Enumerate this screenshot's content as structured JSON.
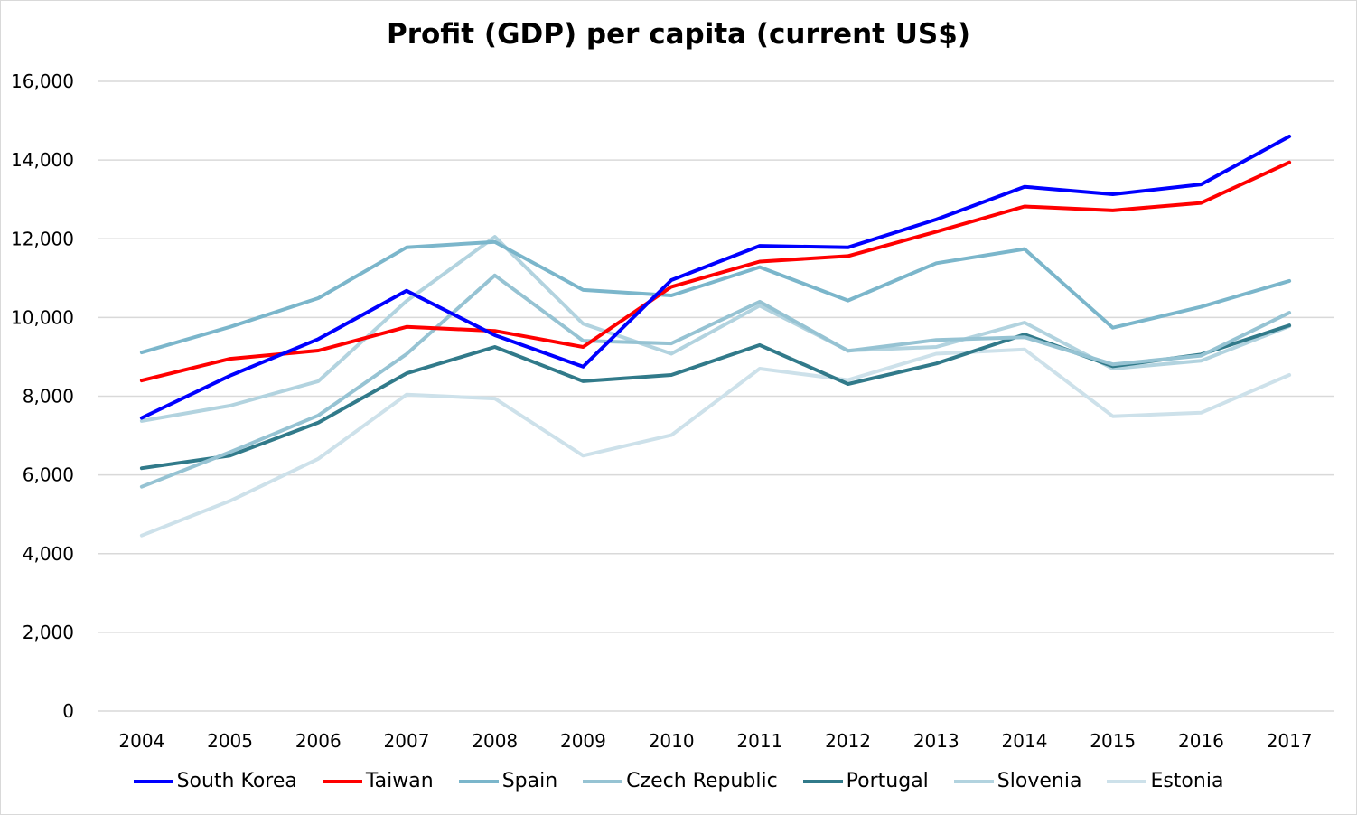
{
  "chart_data": {
    "type": "line",
    "title": "Profit (GDP) per capita (current US$)",
    "xlabel": "",
    "ylabel": "",
    "ylim": [
      0,
      16000
    ],
    "yticks": [
      0,
      2000,
      4000,
      6000,
      8000,
      10000,
      12000,
      14000,
      16000
    ],
    "ytick_labels": [
      "0",
      "2,000",
      "4,000",
      "6,000",
      "8,000",
      "10,000",
      "12,000",
      "14,000",
      "16,000"
    ],
    "grid": true,
    "legend_position": "bottom",
    "categories": [
      "2004",
      "2005",
      "2006",
      "2007",
      "2008",
      "2009",
      "2010",
      "2011",
      "2012",
      "2013",
      "2014",
      "2015",
      "2016",
      "2017"
    ],
    "series": [
      {
        "name": "South Korea",
        "color": "#0000ff",
        "values": [
          7450,
          8520,
          9450,
          10680,
          9550,
          8750,
          10950,
          11820,
          11780,
          12490,
          13320,
          13130,
          13380,
          14600
        ]
      },
      {
        "name": "Taiwan",
        "color": "#ff0000",
        "values": [
          8400,
          8950,
          9160,
          9760,
          9660,
          9250,
          10780,
          11420,
          11560,
          12180,
          12820,
          12720,
          12910,
          13940
        ]
      },
      {
        "name": "Spain",
        "color": "#7bb6cb",
        "values": [
          9110,
          9760,
          10490,
          11780,
          11920,
          10700,
          10560,
          11280,
          10430,
          11380,
          11740,
          9740,
          10270,
          10930
        ]
      },
      {
        "name": "Czech Republic",
        "color": "#96c3d3",
        "values": [
          5700,
          6580,
          7510,
          9070,
          11070,
          9410,
          9340,
          10400,
          9150,
          9430,
          9500,
          8810,
          9030,
          10120
        ]
      },
      {
        "name": "Portugal",
        "color": "#317a8a",
        "values": [
          6170,
          6490,
          7330,
          8580,
          9250,
          8380,
          8540,
          9300,
          8310,
          8830,
          9570,
          8760,
          9060,
          9800
        ]
      },
      {
        "name": "Slovenia",
        "color": "#b2d3df",
        "values": [
          7370,
          7760,
          8380,
          10420,
          12050,
          9840,
          9080,
          10300,
          9160,
          9250,
          9870,
          8700,
          8900,
          9780
        ]
      },
      {
        "name": "Estonia",
        "color": "#cde1ea",
        "values": [
          4460,
          5340,
          6410,
          8040,
          7940,
          6490,
          7010,
          8700,
          8410,
          9080,
          9190,
          7490,
          7580,
          8540
        ]
      }
    ]
  }
}
